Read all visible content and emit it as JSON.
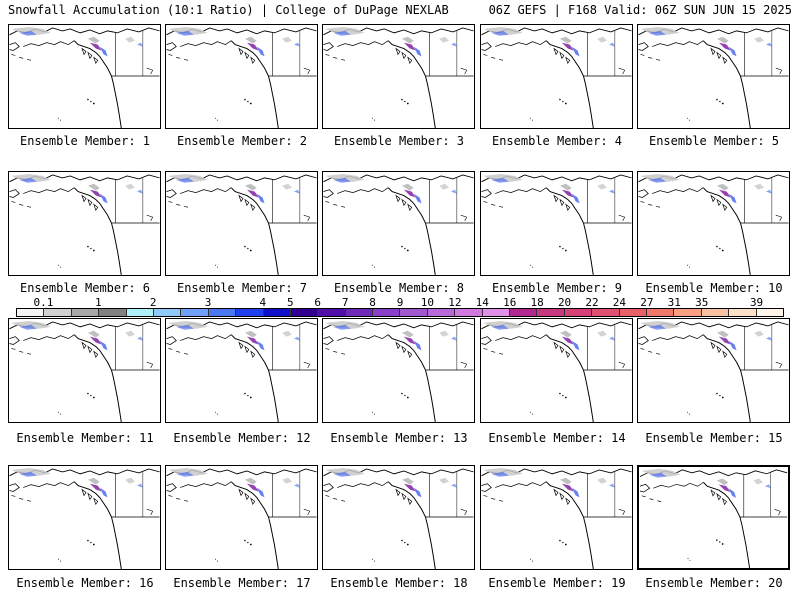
{
  "header": {
    "left": "Snowfall Accumulation (10:1 Ratio) | College of DuPage NEXLAB",
    "right": "06Z GEFS | F168 Valid: 06Z SUN JUN 15 2025"
  },
  "panels": [
    {
      "caption": "Ensemble Member: 1"
    },
    {
      "caption": "Ensemble Member: 2"
    },
    {
      "caption": "Ensemble Member: 3"
    },
    {
      "caption": "Ensemble Member: 4"
    },
    {
      "caption": "Ensemble Member: 5"
    },
    {
      "caption": "Ensemble Member: 6"
    },
    {
      "caption": "Ensemble Member: 7"
    },
    {
      "caption": "Ensemble Member: 8"
    },
    {
      "caption": "Ensemble Member: 9"
    },
    {
      "caption": "Ensemble Member: 10"
    },
    {
      "caption": "Ensemble Member: 11"
    },
    {
      "caption": "Ensemble Member: 12"
    },
    {
      "caption": "Ensemble Member: 13"
    },
    {
      "caption": "Ensemble Member: 14"
    },
    {
      "caption": "Ensemble Member: 15"
    },
    {
      "caption": "Ensemble Member: 16"
    },
    {
      "caption": "Ensemble Member: 17"
    },
    {
      "caption": "Ensemble Member: 18"
    },
    {
      "caption": "Ensemble Member: 19"
    },
    {
      "caption": "Ensemble Member: 20"
    }
  ],
  "legend": {
    "ticks": [
      "0.1",
      "1",
      "2",
      "3",
      "4",
      "5",
      "6",
      "7",
      "8",
      "9",
      "10",
      "12",
      "14",
      "16",
      "18",
      "20",
      "22",
      "24",
      "27",
      "31",
      "35",
      "39"
    ],
    "colors": [
      "#f4f4f4",
      "#d0d0d0",
      "#a8a8a8",
      "#808080",
      "#aef0f8",
      "#90c8f8",
      "#70a0f8",
      "#4878f0",
      "#2040f0",
      "#1010c8",
      "#300090",
      "#5010a8",
      "#7028b8",
      "#8840c8",
      "#a058d0",
      "#b868d8",
      "#d078e0",
      "#e090e8",
      "#b02890",
      "#c83880",
      "#d84078",
      "#e05070",
      "#e86068",
      "#f07868",
      "#f8a080",
      "#f8c0a0",
      "#fce0c8",
      "#fff4e8"
    ]
  },
  "colors": {
    "land_snow_gray": "#c8c8c8",
    "snow_blue": "#4060f0",
    "snow_purple": "#8020a0"
  }
}
